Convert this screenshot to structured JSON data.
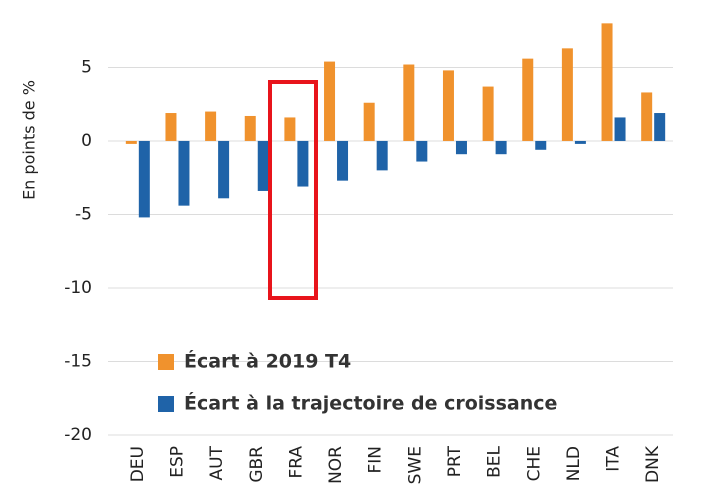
{
  "chart_data": {
    "type": "bar",
    "y_label": "En points de %",
    "categories": [
      "DEU",
      "ESP",
      "AUT",
      "GBR",
      "FRA",
      "NOR",
      "FIN",
      "SWE",
      "PRT",
      "BEL",
      "CHE",
      "NLD",
      "ITA",
      "DNK"
    ],
    "series": [
      {
        "name": "Écart à 2019 T4",
        "color": "#f0922d",
        "values": [
          -0.2,
          1.9,
          2.0,
          1.7,
          1.6,
          5.4,
          2.6,
          5.2,
          4.8,
          3.7,
          5.6,
          6.3,
          8.0,
          3.3
        ]
      },
      {
        "name": "Écart à la trajectoire de croissance",
        "color": "#1f63a8",
        "values": [
          -5.2,
          -4.4,
          -3.9,
          -3.4,
          -3.1,
          -2.7,
          -2.0,
          -1.4,
          -0.9,
          -0.9,
          -0.6,
          -0.2,
          1.6,
          1.9
        ]
      }
    ],
    "ylim": [
      -20,
      8.5
    ],
    "yticks": [
      -20,
      -15,
      -10,
      -5,
      0,
      5
    ],
    "grid": true,
    "legend": "lower left"
  }
}
